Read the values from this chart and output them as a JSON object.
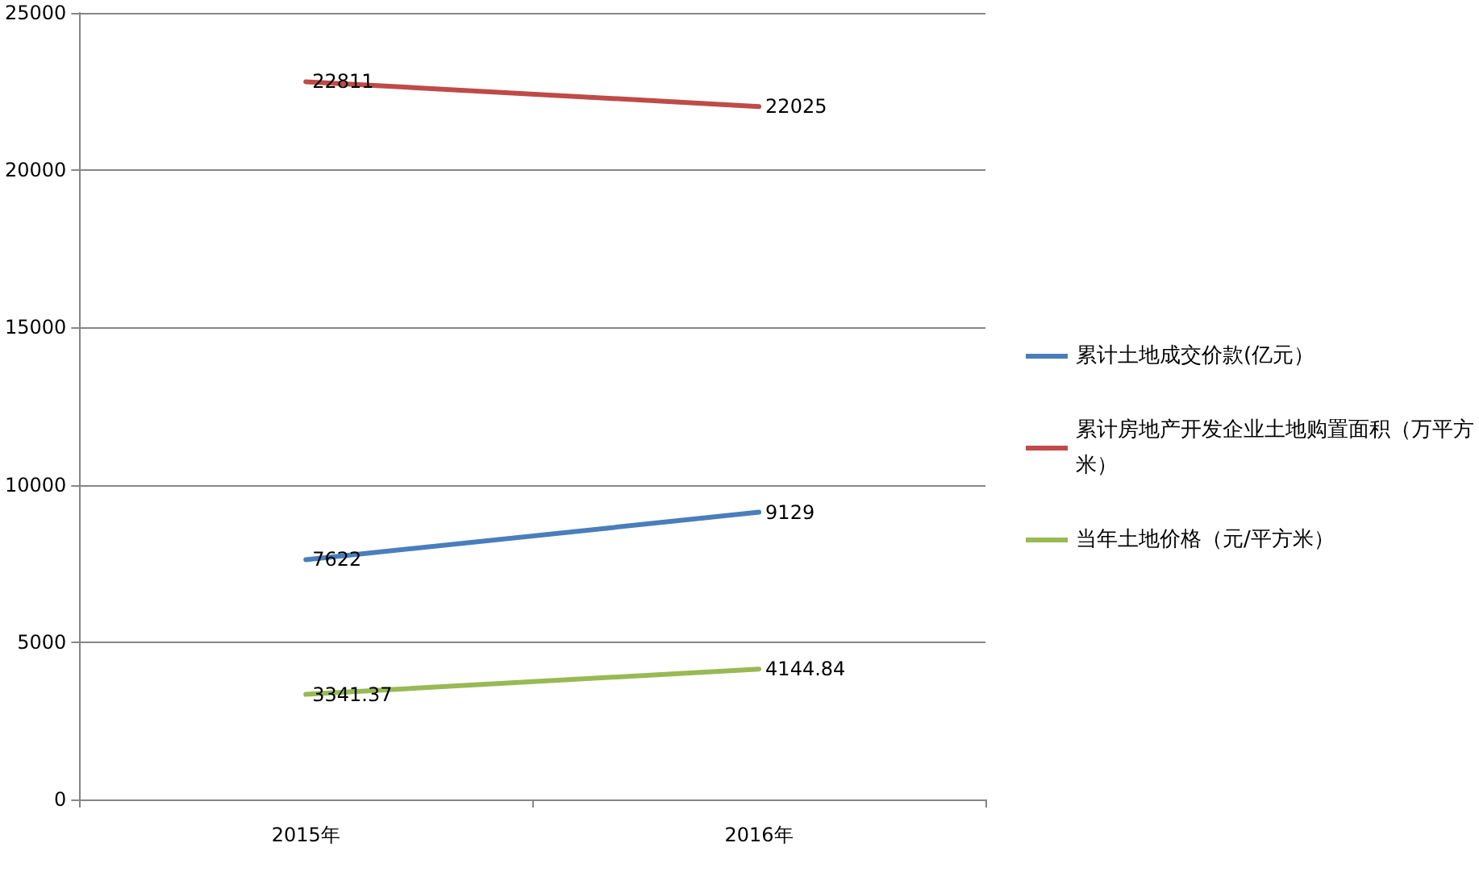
{
  "chart_data": {
    "type": "line",
    "categories": [
      "2015年",
      "2016年"
    ],
    "series": [
      {
        "name": "累计土地成交价款(亿元）",
        "color": "#4a7ebb",
        "values": [
          7622,
          9129
        ]
      },
      {
        "name": "累计房地产开发企业土地购置面积（万平方米）",
        "color": "#be4b48",
        "values": [
          22811,
          22025
        ]
      },
      {
        "name": "当年土地价格（元/平方米）",
        "color": "#98b954",
        "values": [
          3341.37,
          4144.84
        ]
      }
    ],
    "ylim": [
      0,
      25000
    ],
    "yticks": [
      0,
      5000,
      10000,
      15000,
      20000,
      25000
    ],
    "grid": "y",
    "legend": "right",
    "data_labels": true,
    "marker": "none",
    "line_style": "solid"
  }
}
